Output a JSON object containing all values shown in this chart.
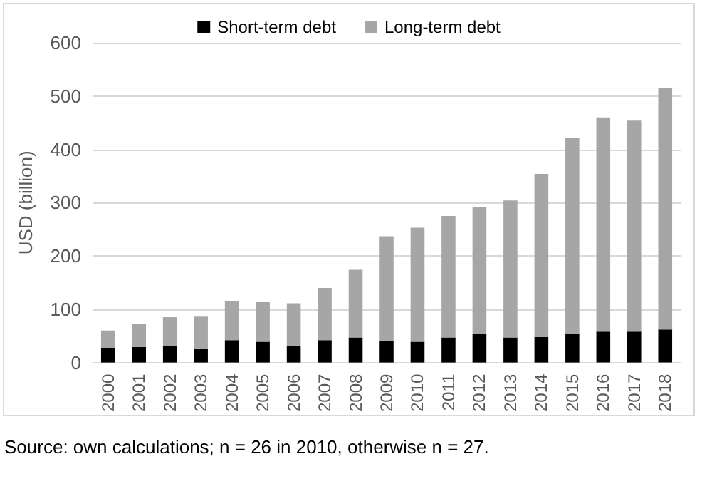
{
  "chart_data": {
    "type": "bar",
    "stacked": true,
    "ylabel": "USD (billion)",
    "categories": [
      "2000",
      "2001",
      "2002",
      "2003",
      "2004",
      "2005",
      "2006",
      "2007",
      "2008",
      "2009",
      "2010",
      "2011",
      "2012",
      "2013",
      "2014",
      "2015",
      "2016",
      "2017",
      "2018"
    ],
    "series": [
      {
        "name": "Short-term debt",
        "color": "#000000",
        "values": [
          27,
          29,
          31,
          25,
          42,
          39,
          31,
          42,
          47,
          40,
          39,
          47,
          54,
          47,
          48,
          54,
          58,
          58,
          62
        ]
      },
      {
        "name": "Long-term debt",
        "color": "#a6a6a6",
        "values": [
          33,
          43,
          54,
          61,
          73,
          74,
          80,
          98,
          127,
          197,
          214,
          228,
          238,
          257,
          306,
          367,
          402,
          396,
          453
        ]
      }
    ],
    "ylim": [
      0,
      600
    ],
    "yticks": [
      0,
      100,
      200,
      300,
      400,
      500,
      600
    ],
    "grid": "y",
    "legend": "top",
    "annotations": [
      "Source: own calculations; n = 26 in 2010, otherwise n = 27."
    ]
  }
}
